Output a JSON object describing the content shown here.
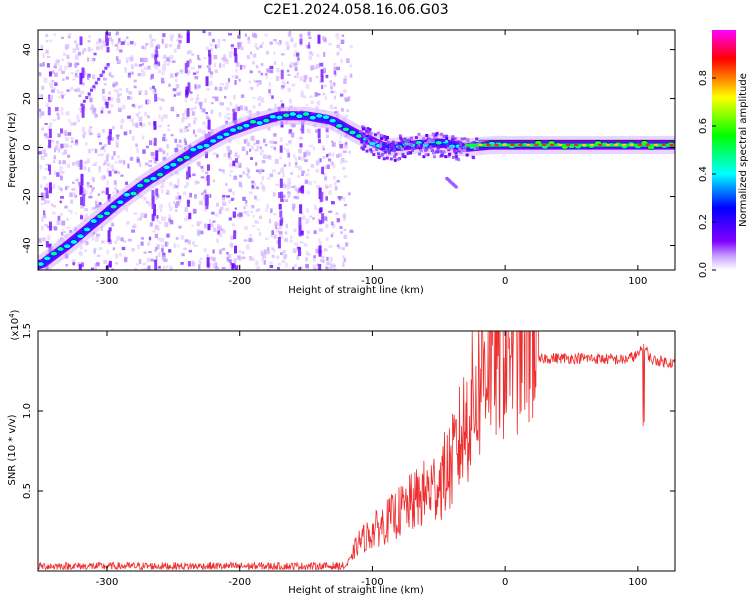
{
  "figure": {
    "title": "C2E1.2024.058.16.06.G03"
  },
  "chart_data": [
    {
      "type": "heatmap",
      "title": "C2E1.2024.058.16.06.G03",
      "xlabel": "Height of straight line (km)",
      "ylabel": "Frequency (Hz)",
      "xlim": [
        -352,
        128
      ],
      "ylim": [
        -50,
        48
      ],
      "xticks": [
        -300,
        -200,
        -100,
        0,
        100
      ],
      "yticks": [
        -40,
        -20,
        0,
        20,
        40
      ],
      "colorbar": {
        "label": "Normalized spectral amplitude",
        "range": [
          0,
          1
        ],
        "ticks": [
          "0.0",
          "0.2",
          "0.4",
          "0.6",
          "0.8"
        ],
        "colormap": [
          "#ffffff",
          "#8000ff",
          "#0000ff",
          "#00ffff",
          "#00ff00",
          "#ffff00",
          "#ff0000",
          "#ff00ff"
        ]
      },
      "ridge": {
        "x": [
          -350,
          -330,
          -310,
          -290,
          -270,
          -250,
          -230,
          -210,
          -190,
          -170,
          -150,
          -130,
          -110,
          -90,
          -70,
          -50,
          -30,
          -10,
          10,
          30,
          60,
          90,
          128
        ],
        "y": [
          -48,
          -40,
          -31,
          -22,
          -14,
          -7,
          0,
          6,
          10,
          13,
          13,
          11,
          5,
          0,
          1,
          2,
          0,
          1,
          1,
          1,
          1,
          1,
          1
        ]
      }
    },
    {
      "type": "line",
      "xlabel": "Height of straight line (km)",
      "ylabel": "SNR (10 * v/v)",
      "y_scale_label": "(x10",
      "y_scale_exp": "4",
      "y_scale_close": ")",
      "xlim": [
        -352,
        128
      ],
      "ylim": [
        0,
        15000
      ],
      "xticks": [
        -300,
        -200,
        -100,
        0,
        100
      ],
      "yticks": [
        5000,
        10000,
        15000
      ],
      "ytick_labels": [
        "0.5",
        "1.0",
        "1.5"
      ],
      "line_color": "#ee2e2e",
      "envelope": {
        "x": [
          -352,
          -120,
          -110,
          -90,
          -70,
          -50,
          -40,
          -30,
          -20,
          -15,
          -10,
          0,
          10,
          20,
          30,
          60,
          90,
          100,
          105,
          110,
          128
        ],
        "y": [
          300,
          300,
          1500,
          2500,
          3500,
          4500,
          5500,
          7500,
          9500,
          11000,
          11500,
          12000,
          12500,
          13000,
          13300,
          13300,
          13200,
          13500,
          14000,
          13200,
          13000
        ]
      }
    }
  ]
}
